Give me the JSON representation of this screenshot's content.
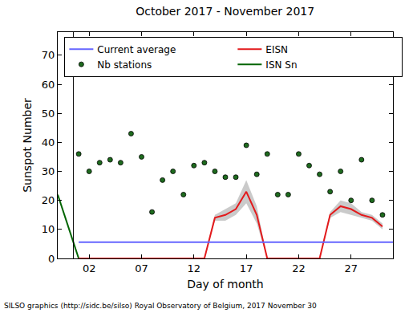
{
  "chart_data": {
    "type": "line",
    "title": "October 2017 - November 2017",
    "x_label": "Day of month",
    "y_label": "Sunspot Number",
    "xlim": [
      -1,
      31
    ],
    "ylim": [
      0,
      78
    ],
    "xticks": [
      {
        "value": 2,
        "label": "02"
      },
      {
        "value": 7,
        "label": "07"
      },
      {
        "value": 12,
        "label": "12"
      },
      {
        "value": 17,
        "label": "17"
      },
      {
        "value": 22,
        "label": "22"
      },
      {
        "value": 27,
        "label": "27"
      }
    ],
    "yticks": [
      0,
      10,
      20,
      30,
      40,
      50,
      60,
      70
    ],
    "grid": false,
    "legend": "upper left",
    "month_boundary": 0.5,
    "annotations": [
      "SILSO graphics (http://sidc.be/silso) Royal Observatory of Belgium, 2017 November 30"
    ],
    "series": [
      {
        "name": "ISN Sn",
        "type": "line",
        "color": "#006400",
        "x": [
          -1,
          1
        ],
        "values": [
          22,
          0
        ]
      },
      {
        "name": "Nb stations",
        "type": "scatter",
        "marker": "circle",
        "color": "#1e6b1e",
        "x": [
          1,
          2,
          3,
          4,
          5,
          6,
          7,
          8,
          9,
          10,
          11,
          12,
          13,
          14,
          15,
          16,
          17,
          18,
          19,
          20,
          21,
          22,
          23,
          24,
          25,
          26,
          27,
          28,
          29,
          30
        ],
        "values": [
          36,
          30,
          33,
          34,
          33,
          43,
          35,
          16,
          27,
          30,
          22,
          32,
          33,
          30,
          28,
          28,
          39,
          29,
          36,
          22,
          22,
          36,
          32,
          29,
          23,
          30,
          20,
          34,
          20,
          15
        ]
      },
      {
        "name": "EISN",
        "type": "line",
        "color": "#e31a1c",
        "x": [
          1,
          2,
          3,
          4,
          5,
          6,
          7,
          8,
          9,
          10,
          11,
          12,
          13,
          14,
          15,
          16,
          17,
          18,
          19,
          20,
          21,
          22,
          23,
          24,
          25,
          26,
          27,
          28,
          29,
          30
        ],
        "values": [
          0,
          0,
          0,
          0,
          0,
          0,
          0,
          0,
          0,
          0,
          0,
          0,
          0,
          14,
          15,
          17,
          23,
          15,
          0,
          0,
          0,
          0,
          0,
          0,
          15,
          18,
          17,
          15,
          14,
          11
        ],
        "error": [
          0,
          0,
          0,
          0,
          0,
          0,
          0,
          0,
          0,
          0,
          0,
          0,
          0,
          1,
          2,
          2,
          4,
          3,
          0,
          0,
          0,
          0,
          0,
          0,
          1,
          2,
          2,
          1,
          1,
          1
        ]
      },
      {
        "name": "Current average",
        "type": "line",
        "color": "#6666ff",
        "x": [
          1,
          31
        ],
        "values": [
          5.6,
          5.6
        ]
      }
    ]
  }
}
